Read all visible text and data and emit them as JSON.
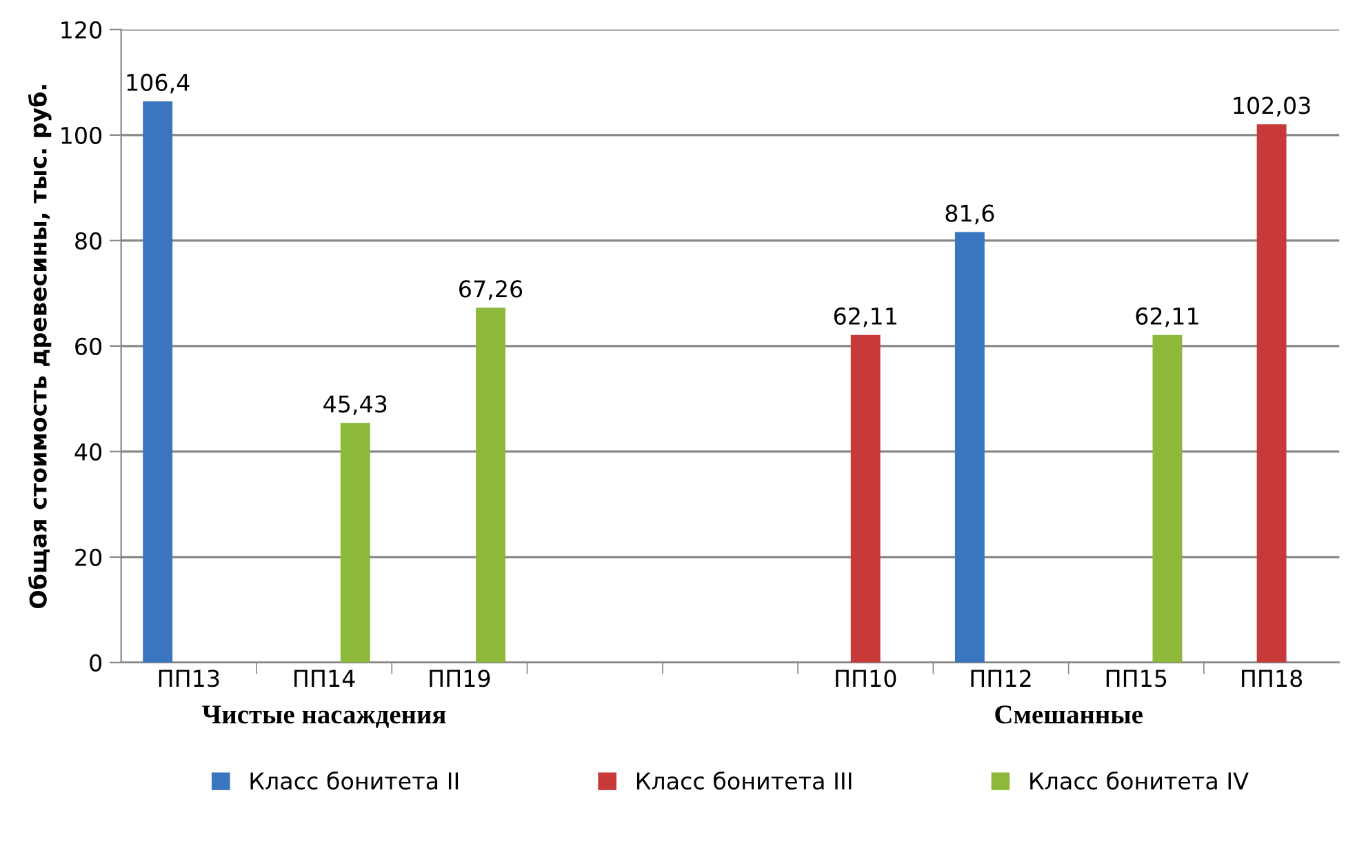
{
  "chart_data": {
    "type": "bar",
    "ylabel": "Общая стоимость древесины, тыс. руб.",
    "categories": [
      "ПП13",
      "ПП14",
      "ПП19",
      null,
      null,
      "ПП10",
      "ПП12",
      "ПП15",
      "ПП18"
    ],
    "series": [
      {
        "name": "Класс бонитета II",
        "color": "#3a75c0",
        "values": [
          106.4,
          null,
          null,
          null,
          null,
          null,
          81.6,
          null,
          null
        ]
      },
      {
        "name": "Класс бонитета III",
        "color": "#c83a3a",
        "values": [
          null,
          null,
          null,
          null,
          null,
          62.11,
          null,
          null,
          102.03
        ]
      },
      {
        "name": "Класс бонитета IV",
        "color": "#8db83a",
        "values": [
          null,
          45.43,
          67.26,
          null,
          null,
          null,
          null,
          62.11,
          null
        ]
      }
    ],
    "value_labels": [
      [
        "106,4",
        null,
        null,
        null,
        null,
        null,
        "81,6",
        null,
        null
      ],
      [
        null,
        null,
        null,
        null,
        null,
        "62,11",
        null,
        null,
        "102,03"
      ],
      [
        null,
        "45,43",
        "67,26",
        null,
        null,
        null,
        null,
        "62,11",
        null
      ]
    ],
    "annotations": [
      "Чистые насаждения",
      "Смешанные"
    ],
    "ylim": [
      0,
      120
    ],
    "yticks": [
      0,
      20,
      40,
      60,
      80,
      100,
      120
    ],
    "grid": "y",
    "legend": "bottom"
  }
}
